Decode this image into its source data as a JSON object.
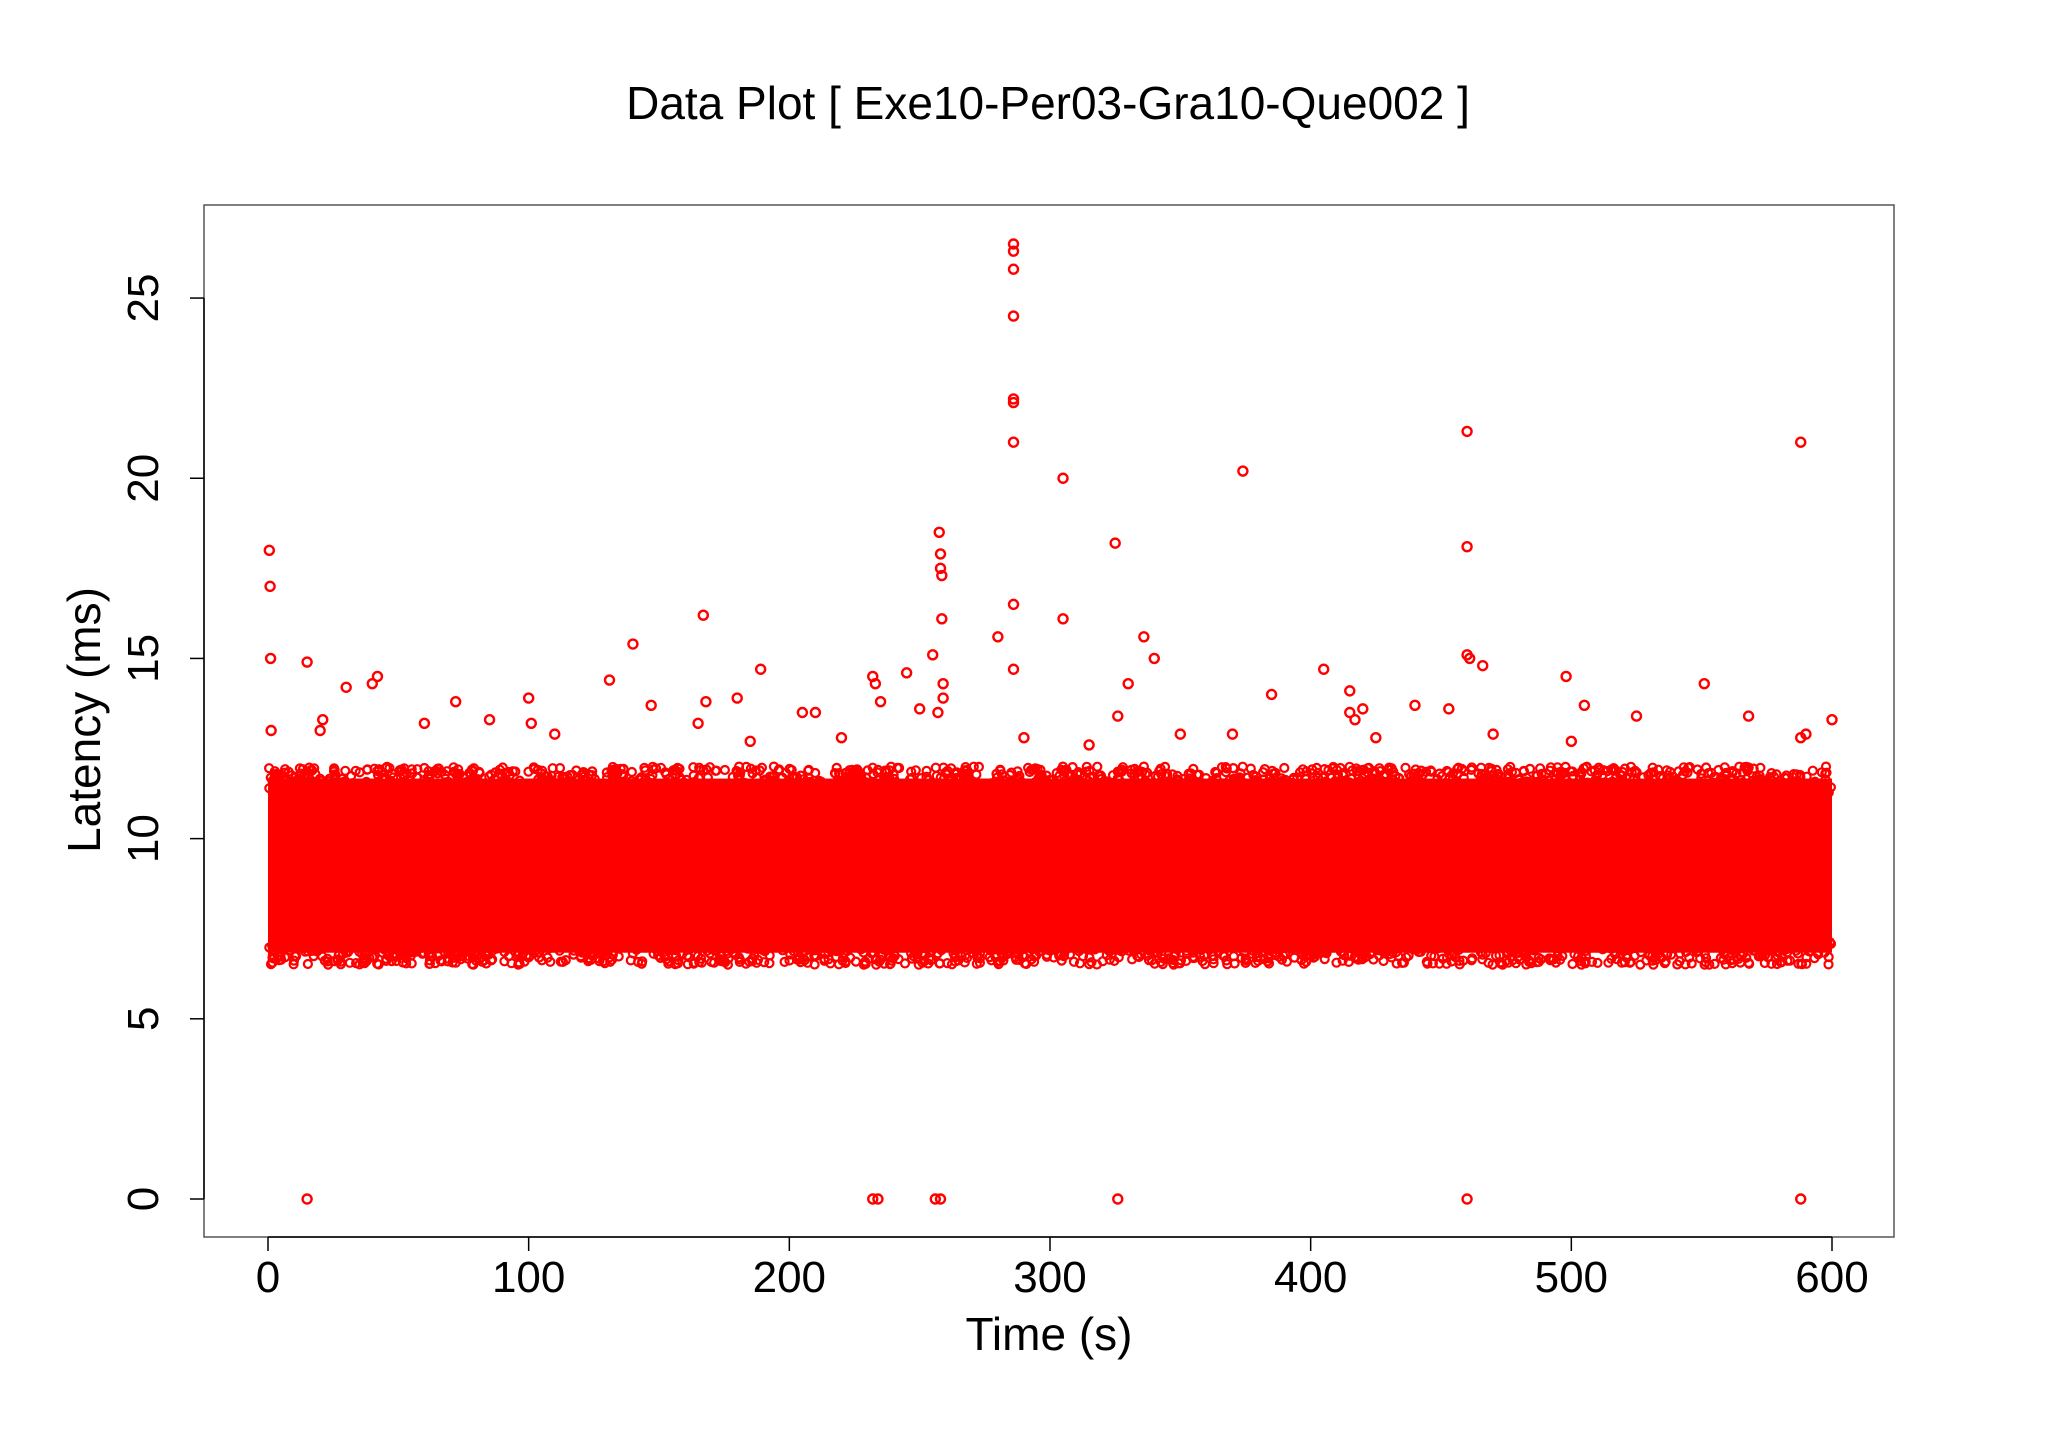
{
  "chart_data": {
    "type": "scatter",
    "title": "Data Plot [ Exe10-Per03-Gra10-Que002 ]",
    "xlabel": "Time (s)",
    "ylabel": "Latency (ms)",
    "xlim": [
      0,
      600
    ],
    "ylim": [
      0,
      26.5
    ],
    "xticks": [
      0,
      100,
      200,
      300,
      400,
      500,
      600
    ],
    "yticks": [
      0,
      5,
      10,
      15,
      20,
      25
    ],
    "color": "#ff0000",
    "marker": "open-circle",
    "grid": false,
    "legend": "none",
    "dense_band": {
      "x_range": [
        0,
        600
      ],
      "y_range": [
        6.5,
        12.0
      ]
    },
    "series": [
      {
        "x": [
          0.5,
          0.8,
          1.0,
          1.2,
          15,
          20,
          21,
          30,
          40,
          42,
          60,
          72,
          85,
          100,
          101,
          110,
          131,
          140,
          147,
          165,
          167,
          168,
          180,
          185,
          189,
          205,
          210,
          220,
          232,
          233,
          235,
          245,
          250,
          255,
          257,
          257.5,
          258,
          258,
          258.5,
          258.5,
          259,
          259,
          280,
          286,
          286,
          286,
          286,
          286,
          286,
          286,
          286,
          286,
          290,
          305,
          305,
          315,
          325,
          326,
          330,
          336,
          340,
          350,
          370,
          374,
          385,
          405,
          415,
          415,
          417,
          420,
          425,
          440,
          453,
          460,
          460,
          460,
          461,
          466,
          470,
          498,
          500,
          505,
          525,
          551,
          568,
          588,
          588,
          590,
          600,
          15,
          232,
          234,
          256,
          258,
          326,
          460,
          588
        ],
        "y": [
          18.0,
          17.0,
          15.0,
          13.0,
          14.9,
          13.0,
          13.3,
          14.2,
          14.3,
          14.5,
          13.2,
          13.8,
          13.3,
          13.9,
          13.2,
          12.9,
          14.4,
          15.4,
          13.7,
          13.2,
          16.2,
          13.8,
          13.9,
          12.7,
          14.7,
          13.5,
          13.5,
          12.8,
          14.5,
          14.3,
          13.8,
          14.6,
          13.6,
          15.1,
          13.5,
          18.5,
          17.9,
          17.5,
          17.3,
          16.1,
          14.3,
          13.9,
          15.6,
          26.5,
          26.3,
          25.8,
          24.5,
          22.2,
          22.1,
          21.0,
          16.5,
          14.7,
          12.8,
          20.0,
          16.1,
          12.6,
          18.2,
          13.4,
          14.3,
          15.6,
          15.0,
          12.9,
          12.9,
          20.2,
          14.0,
          14.7,
          14.1,
          13.5,
          13.3,
          13.6,
          12.8,
          13.7,
          13.6,
          21.3,
          18.1,
          15.1,
          15.0,
          14.8,
          12.9,
          14.5,
          12.7,
          13.7,
          13.4,
          14.3,
          13.4,
          21.0,
          12.8,
          12.9,
          13.3,
          0,
          0,
          0,
          0,
          0,
          0,
          0,
          0
        ]
      }
    ]
  }
}
